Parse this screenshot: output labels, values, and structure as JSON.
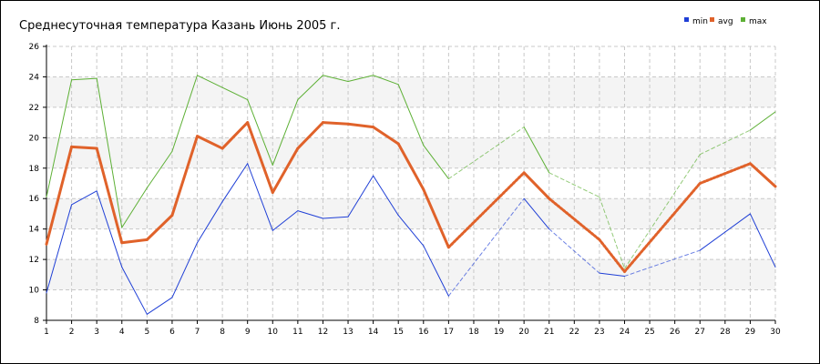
{
  "chart_data": {
    "type": "line",
    "title": "Среднесуточная температура Казань  Июнь 2005 г.",
    "xlabel": "",
    "ylabel": "",
    "x": [
      1,
      2,
      3,
      4,
      5,
      6,
      7,
      8,
      9,
      10,
      11,
      12,
      13,
      14,
      15,
      16,
      17,
      18,
      19,
      20,
      21,
      22,
      23,
      24,
      25,
      26,
      27,
      28,
      29,
      30
    ],
    "xlim": [
      1,
      30
    ],
    "ylim": [
      8,
      26
    ],
    "yticks": [
      8,
      10,
      12,
      14,
      16,
      18,
      20,
      22,
      24,
      26
    ],
    "grid": true,
    "legend_position": "top-right",
    "series": [
      {
        "name": "min",
        "color": "#1f3fd6",
        "points": [
          [
            1,
            9.8
          ],
          [
            2,
            15.6
          ],
          [
            3,
            16.5
          ],
          [
            4,
            11.5
          ],
          [
            5,
            8.4
          ],
          [
            6,
            9.5
          ],
          [
            7,
            13.1
          ],
          [
            8,
            15.8
          ],
          [
            9,
            18.3
          ],
          [
            10,
            13.9
          ],
          [
            11,
            15.2
          ],
          [
            12,
            14.7
          ],
          [
            13,
            14.8
          ],
          [
            14,
            17.5
          ],
          [
            15,
            14.9
          ],
          [
            16,
            12.9
          ],
          [
            17,
            9.6
          ],
          [
            20,
            16.0
          ],
          [
            21,
            14.0
          ],
          [
            23,
            11.1
          ],
          [
            24,
            10.9
          ],
          [
            27,
            12.6
          ],
          [
            29,
            15.0
          ],
          [
            30,
            11.5
          ]
        ],
        "dashed_from": 17,
        "dashed_to": 27
      },
      {
        "name": "avg",
        "color": "#e0622a",
        "points": [
          [
            1,
            13.0
          ],
          [
            2,
            19.4
          ],
          [
            3,
            19.3
          ],
          [
            4,
            13.1
          ],
          [
            5,
            13.3
          ],
          [
            6,
            14.9
          ],
          [
            7,
            20.1
          ],
          [
            8,
            19.3
          ],
          [
            9,
            21.0
          ],
          [
            10,
            16.4
          ],
          [
            11,
            19.3
          ],
          [
            12,
            21.0
          ],
          [
            13,
            20.9
          ],
          [
            14,
            20.7
          ],
          [
            15,
            19.6
          ],
          [
            16,
            16.6
          ],
          [
            17,
            12.8
          ],
          [
            20,
            17.7
          ],
          [
            21,
            16.0
          ],
          [
            23,
            13.3
          ],
          [
            24,
            11.2
          ],
          [
            27,
            17.0
          ],
          [
            29,
            18.3
          ],
          [
            30,
            16.8
          ]
        ],
        "dashed_from": 17,
        "dashed_to": 29
      },
      {
        "name": "max",
        "color": "#5db035",
        "points": [
          [
            1,
            16.1
          ],
          [
            2,
            23.8
          ],
          [
            3,
            23.9
          ],
          [
            4,
            14.1
          ],
          [
            5,
            16.7
          ],
          [
            6,
            19.1
          ],
          [
            7,
            24.1
          ],
          [
            8,
            23.3
          ],
          [
            9,
            22.5
          ],
          [
            10,
            18.2
          ],
          [
            11,
            22.5
          ],
          [
            12,
            24.1
          ],
          [
            13,
            23.7
          ],
          [
            14,
            24.1
          ],
          [
            15,
            23.5
          ],
          [
            16,
            19.5
          ],
          [
            17,
            17.3
          ],
          [
            20,
            20.7
          ],
          [
            21,
            17.7
          ],
          [
            23,
            16.1
          ],
          [
            24,
            11.4
          ],
          [
            27,
            18.9
          ],
          [
            29,
            20.5
          ],
          [
            30,
            21.7
          ]
        ],
        "dashed_from": 17,
        "dashed_to": 29
      }
    ]
  }
}
